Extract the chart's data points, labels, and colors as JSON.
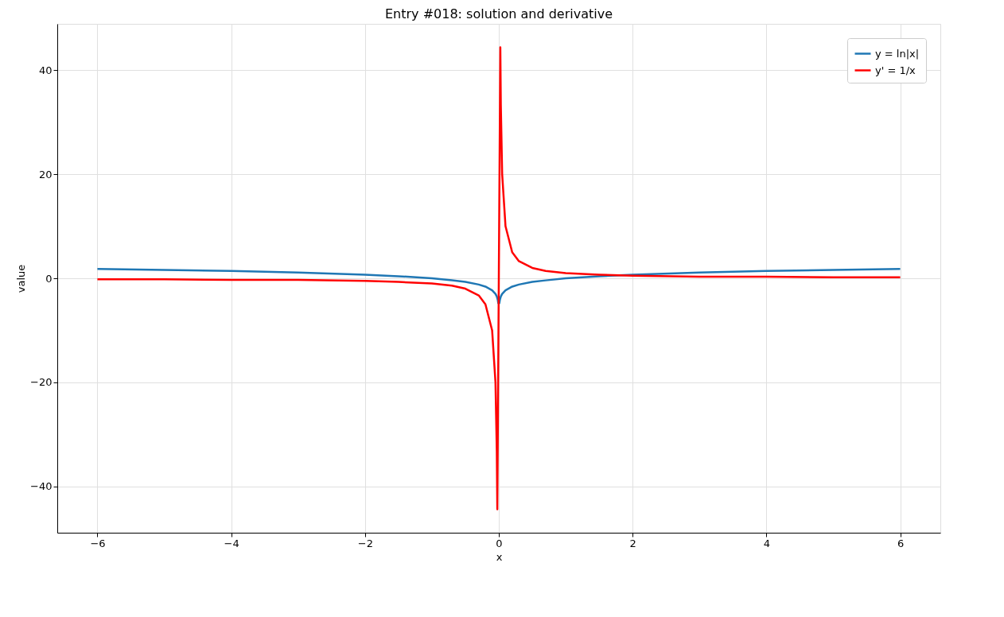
{
  "chart_data": {
    "type": "line",
    "title": "Entry #018: solution and derivative",
    "xlabel": "x",
    "ylabel": "value",
    "xlim": [
      -6.6,
      6.6
    ],
    "ylim": [
      -48.9,
      48.9
    ],
    "xticks": [
      {
        "value": -6,
        "label": "−6"
      },
      {
        "value": -4,
        "label": "−4"
      },
      {
        "value": -2,
        "label": "−2"
      },
      0,
      2,
      4,
      6
    ],
    "yticks": [
      {
        "value": -40,
        "label": "−40"
      },
      {
        "value": -20,
        "label": "−20"
      },
      0,
      20,
      40
    ],
    "grid": true,
    "legend": "top right",
    "marker": "none",
    "line_style": "solid",
    "series": [
      {
        "name": "y = ln|x|",
        "color": "#1f77b4",
        "x": [
          -6,
          -5,
          -4,
          -3,
          -2,
          -1.5,
          -1,
          -0.7,
          -0.5,
          -0.3,
          -0.2,
          -0.1,
          -0.05,
          -0.03,
          -0.015,
          -0.0082,
          0.0082,
          0.015,
          0.03,
          0.05,
          0.1,
          0.2,
          0.3,
          0.5,
          0.7,
          1,
          1.5,
          2,
          3,
          4,
          5,
          6
        ],
        "values": [
          1.8,
          1.6,
          1.4,
          1.1,
          0.7,
          0.4,
          0,
          -0.4,
          -0.7,
          -1.2,
          -1.6,
          -2.3,
          -3.0,
          -3.5,
          -4.2,
          -4.8,
          -4.8,
          -4.2,
          -3.5,
          -3.0,
          -2.3,
          -1.6,
          -1.2,
          -0.7,
          -0.4,
          0,
          0.4,
          0.7,
          1.1,
          1.4,
          1.6,
          1.8
        ]
      },
      {
        "name": "y' = 1/x",
        "color": "#ff0000",
        "x": [
          -6,
          -5,
          -4,
          -3,
          -2,
          -1.5,
          -1,
          -0.7,
          -0.5,
          -0.3,
          -0.2,
          -0.1,
          -0.05,
          -0.03,
          -0.0225,
          0.0225,
          0.03,
          0.05,
          0.1,
          0.2,
          0.3,
          0.5,
          0.7,
          1,
          1.5,
          2,
          3,
          4,
          5,
          6
        ],
        "values": [
          -0.2,
          -0.2,
          -0.3,
          -0.3,
          -0.5,
          -0.7,
          -1,
          -1.4,
          -2,
          -3.3,
          -5,
          -10,
          -20,
          -33.3,
          -44.4,
          44.4,
          33.3,
          20,
          10,
          5,
          3.3,
          2,
          1.4,
          1,
          0.7,
          0.5,
          0.3,
          0.3,
          0.2,
          0.2
        ]
      }
    ]
  }
}
